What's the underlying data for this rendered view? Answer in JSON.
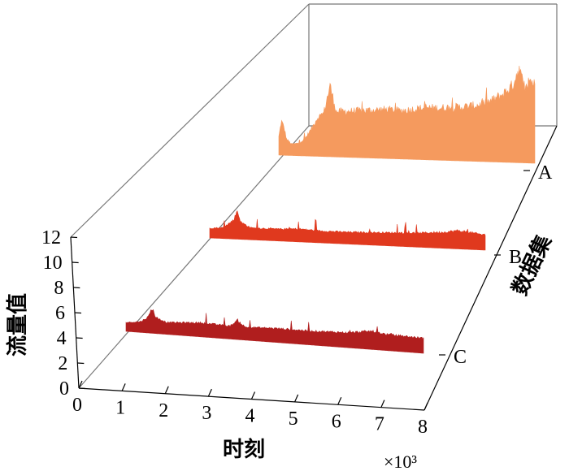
{
  "chart_data": {
    "type": "line",
    "title": "",
    "xlabel": "时刻",
    "ylabel": "流量值",
    "zlabel": "数据集",
    "x_multiplier": "×10³",
    "x_ticks": [
      "0",
      "1",
      "2",
      "3",
      "4",
      "5",
      "6",
      "7",
      "8"
    ],
    "y_ticks": [
      "0",
      "2",
      "4",
      "6",
      "8",
      "10",
      "12"
    ],
    "z_ticks": [
      "A",
      "B",
      "C"
    ],
    "xlim": [
      0,
      8000
    ],
    "ylim": [
      0,
      12
    ],
    "series": [
      {
        "name": "A",
        "color": "#F59A5E",
        "x_range": [
          0,
          8000
        ],
        "baseline": 2.0,
        "profile": [
          [
            0,
            3.6
          ],
          [
            80,
            5.2
          ],
          [
            160,
            4.6
          ],
          [
            240,
            3.4
          ],
          [
            400,
            2.9
          ],
          [
            600,
            3.0
          ],
          [
            800,
            3.4
          ],
          [
            1000,
            4.4
          ],
          [
            1200,
            5.6
          ],
          [
            1400,
            6.1
          ],
          [
            1600,
            8.9
          ],
          [
            1800,
            6.3
          ],
          [
            2200,
            6.4
          ],
          [
            2600,
            6.5
          ],
          [
            3000,
            6.6
          ],
          [
            3400,
            6.7
          ],
          [
            3800,
            6.6
          ],
          [
            4200,
            6.8
          ],
          [
            4600,
            7.0
          ],
          [
            5000,
            7.0
          ],
          [
            5400,
            7.1
          ],
          [
            5800,
            7.2
          ],
          [
            6200,
            7.4
          ],
          [
            6600,
            7.8
          ],
          [
            7000,
            8.6
          ],
          [
            7300,
            9.5
          ],
          [
            7500,
            11.3
          ],
          [
            7700,
            9.0
          ],
          [
            7850,
            10.2
          ],
          [
            8000,
            9.6
          ]
        ]
      },
      {
        "name": "B",
        "color": "#E0391E",
        "x_range": [
          0,
          8000
        ],
        "baseline": 0,
        "profile": [
          [
            0,
            0.7
          ],
          [
            400,
            0.8
          ],
          [
            700,
            1.6
          ],
          [
            800,
            2.5
          ],
          [
            900,
            1.4
          ],
          [
            1200,
            0.9
          ],
          [
            2000,
            0.9
          ],
          [
            2600,
            1.0
          ],
          [
            3200,
            0.9
          ],
          [
            4000,
            0.9
          ],
          [
            5000,
            1.0
          ],
          [
            6000,
            1.1
          ],
          [
            6800,
            1.3
          ],
          [
            7200,
            1.5
          ],
          [
            7500,
            1.4
          ],
          [
            8000,
            1.2
          ]
        ]
      },
      {
        "name": "C",
        "color": "#B01E1E",
        "x_range": [
          0,
          8000
        ],
        "baseline": 0,
        "profile": [
          [
            0,
            0.6
          ],
          [
            400,
            0.8
          ],
          [
            600,
            1.3
          ],
          [
            700,
            2.2
          ],
          [
            800,
            1.3
          ],
          [
            1100,
            0.9
          ],
          [
            2000,
            1.1
          ],
          [
            2800,
            1.0
          ],
          [
            3000,
            1.6
          ],
          [
            3200,
            1.0
          ],
          [
            4000,
            1.1
          ],
          [
            5000,
            1.1
          ],
          [
            6000,
            1.2
          ],
          [
            6600,
            1.5
          ],
          [
            7000,
            1.3
          ],
          [
            8000,
            1.2
          ]
        ]
      }
    ]
  }
}
